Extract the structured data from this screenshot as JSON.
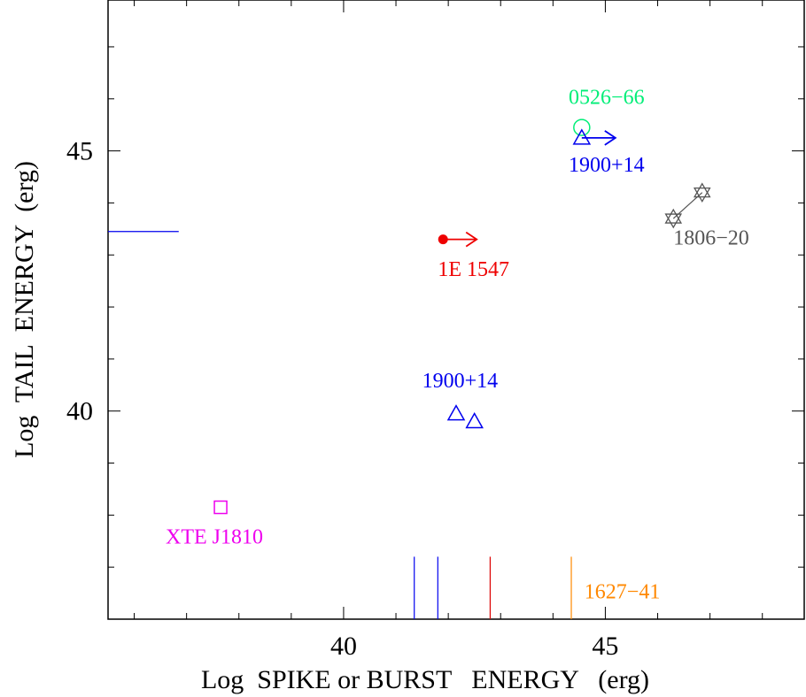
{
  "chart_data": {
    "type": "scatter",
    "xlabel": "Log  SPIKE or BURST   ENERGY   (erg)",
    "ylabel": "Log  TAIL  ENERGY  (erg)",
    "xlim": [
      35.5,
      48.8
    ],
    "ylim": [
      36.0,
      47.9
    ],
    "xticks": [
      {
        "value": 40,
        "label": "40"
      },
      {
        "value": 45,
        "label": "45"
      }
    ],
    "yticks": [
      {
        "value": 40,
        "label": "40"
      },
      {
        "value": 45,
        "label": "45"
      }
    ],
    "series": [
      {
        "color": "#00ee77",
        "marker": "circle",
        "points": [
          [
            44.55,
            45.45
          ]
        ],
        "label": "0526−66",
        "label_at": [
          44.3,
          45.9
        ]
      },
      {
        "color": "#0000ee",
        "marker": "triangle",
        "points": [
          [
            44.55,
            45.25
          ]
        ],
        "arrow": "right",
        "label": "1900+14",
        "label_at": [
          44.3,
          44.6
        ]
      },
      {
        "color": "#555555",
        "marker": "star",
        "points": [
          [
            46.3,
            43.7
          ],
          [
            46.85,
            44.2
          ]
        ],
        "connect": true,
        "label": "1806−20",
        "label_at": [
          46.3,
          43.2
        ]
      },
      {
        "color": "#ee0000",
        "marker": "dot",
        "points": [
          [
            41.9,
            43.3
          ]
        ],
        "arrow": "right",
        "label": "1E 1547",
        "label_at": [
          41.8,
          42.6
        ]
      },
      {
        "color": "#0000ee",
        "marker": "triangle",
        "points": [
          [
            42.15,
            39.95
          ],
          [
            42.5,
            39.8
          ]
        ],
        "label": "1900+14",
        "label_at": [
          41.5,
          40.45
        ]
      },
      {
        "color": "#ee00ee",
        "marker": "square",
        "points": [
          [
            37.65,
            38.15
          ]
        ],
        "label": "XTE J1810",
        "label_at": [
          36.6,
          37.45
        ]
      }
    ],
    "hlines": [
      {
        "color": "#0000ee",
        "y": 43.45,
        "x0": 35.5,
        "x1": 36.85
      }
    ],
    "vlines": [
      {
        "color": "#0000ee",
        "x": 41.35,
        "y0": 36.0,
        "y1": 37.2
      },
      {
        "color": "#0000ee",
        "x": 41.8,
        "y0": 36.0,
        "y1": 37.2
      },
      {
        "color": "#dd0000",
        "x": 42.8,
        "y0": 36.0,
        "y1": 37.2
      },
      {
        "color": "#ff8800",
        "x": 44.35,
        "y0": 36.0,
        "y1": 37.2,
        "label": "1627−41",
        "label_at": [
          44.6,
          36.4
        ]
      }
    ]
  }
}
